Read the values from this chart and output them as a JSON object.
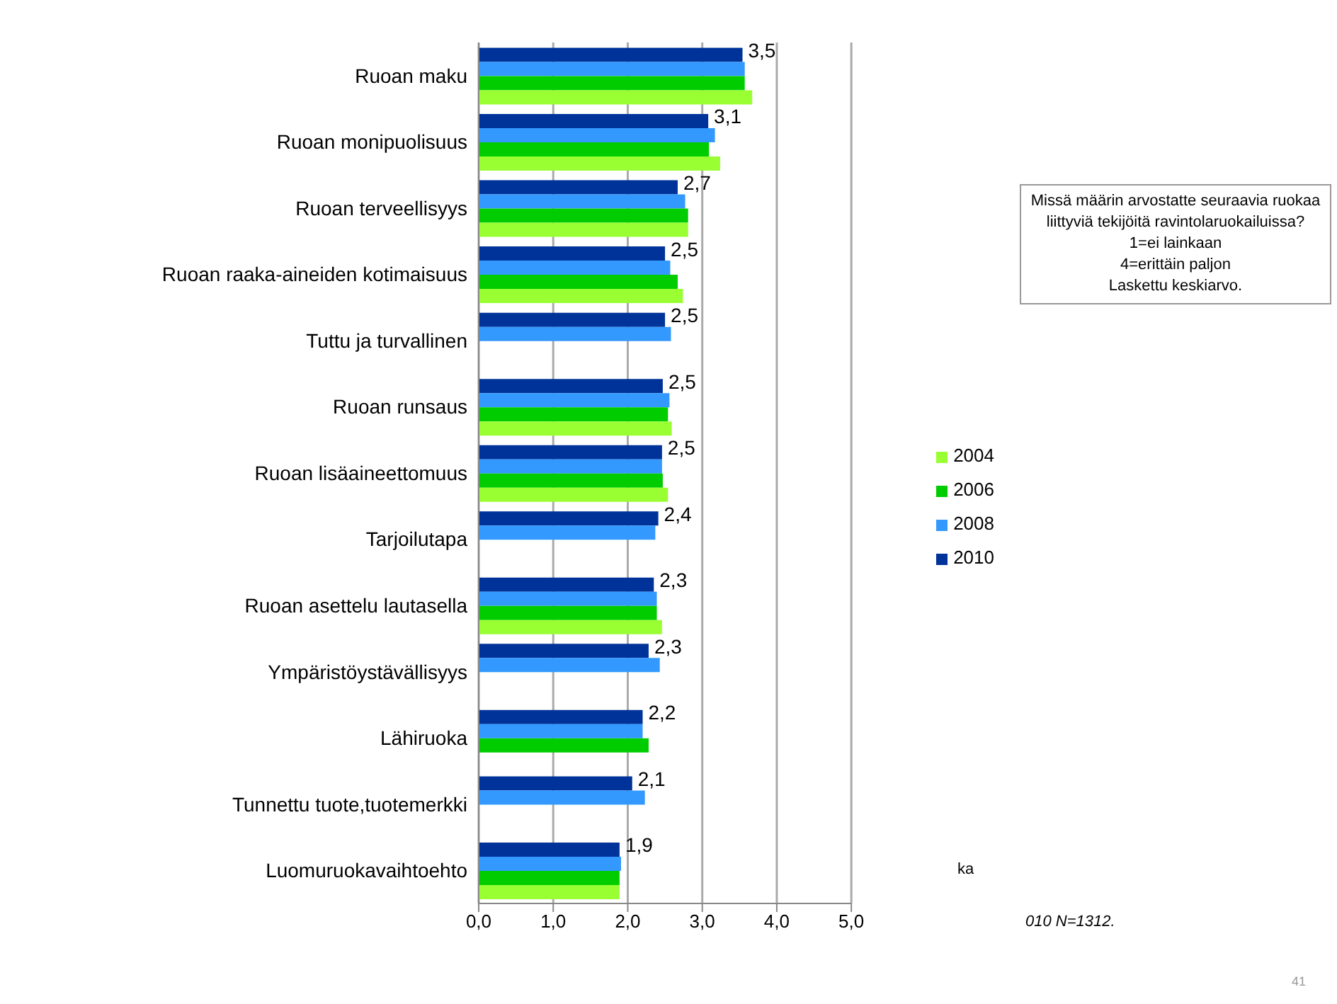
{
  "chart_data": {
    "type": "bar",
    "orientation": "horizontal",
    "categories": [
      "Ruoan maku",
      "Ruoan monipuolisuus",
      "Ruoan terveellisyys",
      "Ruoan raaka-aineiden kotimaisuus",
      "Tuttu ja turvallinen",
      "Ruoan runsaus",
      "Ruoan lisäaineettomuus",
      "Tarjoilutapa",
      "Ruoan asettelu lautasella",
      "Ympäristöystävällisyys",
      "Lähiruoka",
      "Tunnettu tuote,tuotemerkki",
      "Luomuruokavaihtoehto"
    ],
    "series": [
      {
        "name": "2010",
        "color": "#003399",
        "values": [
          3.54,
          3.08,
          2.67,
          2.5,
          2.5,
          2.47,
          2.46,
          2.41,
          2.35,
          2.28,
          2.2,
          2.06,
          1.89
        ],
        "value_labels": [
          "3,5",
          "3,1",
          "2,7",
          "2,5",
          "2,5",
          "2,5",
          "2,5",
          "2,4",
          "2,3",
          "2,3",
          "2,2",
          "2,1",
          "1,9"
        ]
      },
      {
        "name": "2008",
        "color": "#3399ff",
        "values": [
          3.57,
          3.17,
          2.77,
          2.57,
          2.58,
          2.56,
          2.46,
          2.37,
          2.39,
          2.43,
          2.2,
          2.23,
          1.91
        ]
      },
      {
        "name": "2006",
        "color": "#00cc00",
        "values": [
          3.57,
          3.09,
          2.81,
          2.67,
          null,
          2.54,
          2.47,
          null,
          2.39,
          null,
          2.28,
          null,
          1.89
        ]
      },
      {
        "name": "2004",
        "color": "#99ff33",
        "values": [
          3.67,
          3.24,
          2.81,
          2.74,
          null,
          2.59,
          2.54,
          null,
          2.46,
          null,
          null,
          null,
          1.89
        ]
      }
    ],
    "xlim": [
      0,
      5
    ],
    "xticks": [
      {
        "value": 0,
        "label": "0,0"
      },
      {
        "value": 1,
        "label": "1,0"
      },
      {
        "value": 2,
        "label": "2,0"
      },
      {
        "value": 3,
        "label": "3,0"
      },
      {
        "value": 4,
        "label": "4,0"
      },
      {
        "value": 5,
        "label": "5,0"
      }
    ],
    "grid": "x",
    "legend": "right",
    "annotations": [
      "Missä määrin arvostatte seuraavia ruokaa liittyviä tekijöitä ravintolaruokailuissa?\n1=ei lainkaan\n4=erittäin paljon\nLaskettu keskiarvo.",
      "ka",
      "010 N=1312.",
      "41"
    ]
  }
}
